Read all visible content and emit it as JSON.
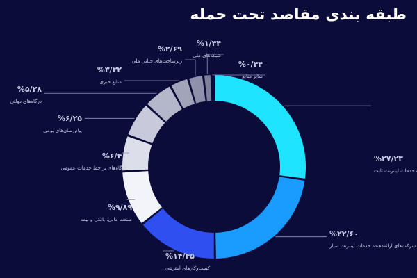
{
  "chart_data": {
    "type": "donut",
    "title": "طبقه بندی مقاصد تحت حمله",
    "categories": [
      "شرکت‌های ارائه‌دهنده خدمات اینترنت ثابت",
      "شرکت‌های ارائه‌دهنده خدمات اینترنت سیار",
      "کسب‌وکارهای اینترنتی",
      "صنعت مالی، بانکی و بیمه",
      "درگاه‌های بر خط خدمات عمومی",
      "پیام‌رسان‌های بومی",
      "درگاه‌های دولتی",
      "منابع خبری",
      "زیرساخت‌های حیاتی ملی",
      "شبکه‌های ملی",
      "سایر منابع"
    ],
    "values": [
      27.23,
      22.6,
      14.45,
      9.89,
      6.4,
      6.25,
      5.28,
      3.32,
      2.69,
      1.44,
      0.44
    ],
    "value_labels": [
      "%۲۷/۲۳",
      "%۲۲/۶۰",
      "%۱۴/۴۵",
      "%۹/۸۹",
      "%۶/۴۰",
      "%۶/۲۵",
      "%۵/۲۸",
      "%۳/۳۲",
      "%۲/۶۹",
      "%۱/۴۴",
      "%۰/۴۴"
    ],
    "colors": [
      "#1fe4ff",
      "#1a9cff",
      "#2f4ff0",
      "#f2f4fa",
      "#dcdeea",
      "#c8cadb",
      "#b4b6ca",
      "#a2a4ba",
      "#8f91aa",
      "#7e809a",
      "#6e708a"
    ]
  }
}
